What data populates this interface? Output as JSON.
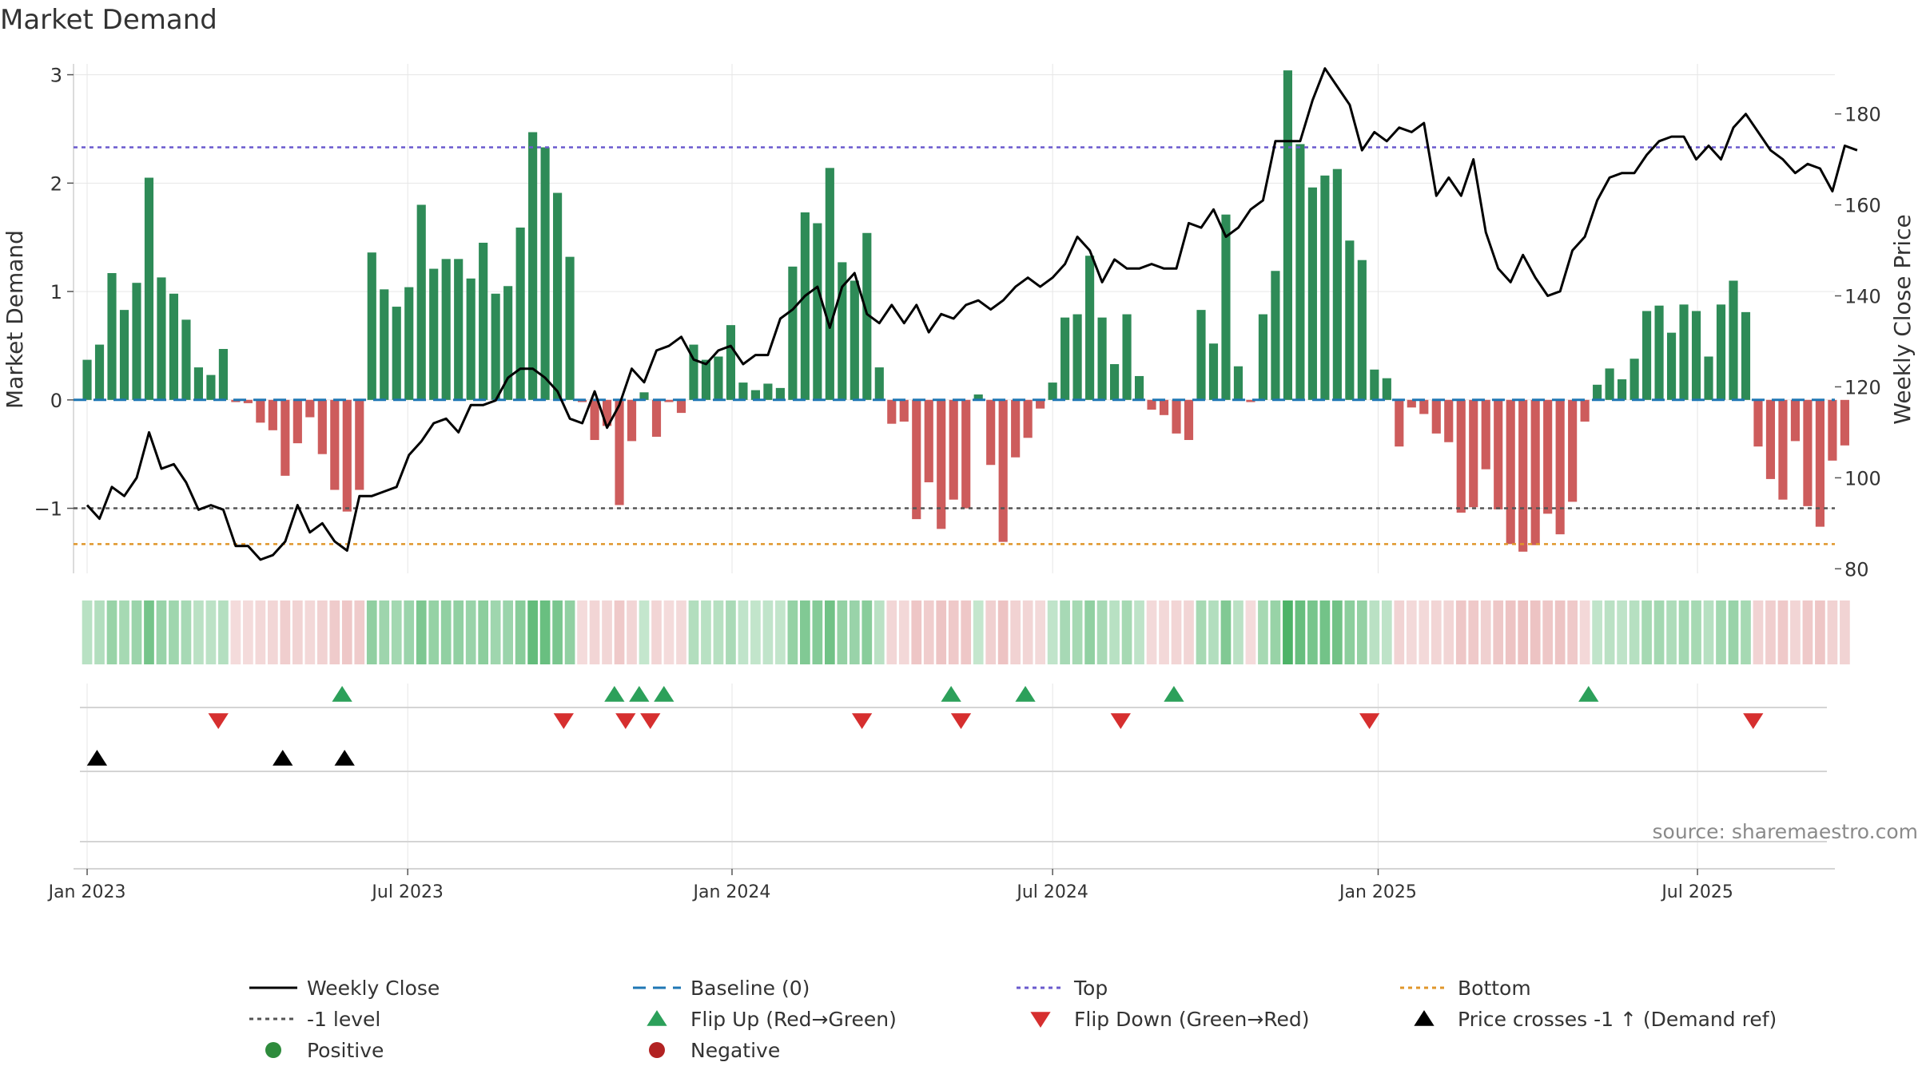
{
  "chart_data": {
    "type": "bar",
    "title": "Market Demand",
    "ylabel_left": "Market Demand",
    "ylabel_right": "Weekly Close Price",
    "source": "source: sharemaestro.com",
    "ylim_left": [
      -1.6,
      3.1
    ],
    "yticks_left": [
      {
        "v": 3,
        "label": "3"
      },
      {
        "v": 2,
        "label": "2"
      },
      {
        "v": 1,
        "label": "1"
      },
      {
        "v": 0,
        "label": "0"
      },
      {
        "v": -1,
        "label": "−1"
      }
    ],
    "ylim_right": [
      79,
      191
    ],
    "yticks_right": [
      {
        "v": 180,
        "label": "180"
      },
      {
        "v": 160,
        "label": "160"
      },
      {
        "v": 140,
        "label": "140"
      },
      {
        "v": 120,
        "label": "120"
      },
      {
        "v": 100,
        "label": "100"
      },
      {
        "v": 80,
        "label": "80"
      }
    ],
    "x_range_weeks": [
      -1.1,
      141.2
    ],
    "x_ticks": [
      {
        "week": 0,
        "label": "Jan 2023"
      },
      {
        "week": 25.9,
        "label": "Jul 2023"
      },
      {
        "week": 52.1,
        "label": "Jan 2024"
      },
      {
        "week": 78,
        "label": "Jul 2024"
      },
      {
        "week": 104.3,
        "label": "Jan 2025"
      },
      {
        "week": 130.1,
        "label": "Jul 2025"
      }
    ],
    "reference_lines": {
      "top": 2.33,
      "bottom": -1.33,
      "minus_one": -1,
      "baseline": 0
    },
    "demand": [
      0.37,
      0.51,
      1.17,
      0.83,
      1.08,
      2.05,
      1.13,
      0.98,
      0.74,
      0.3,
      0.23,
      0.47,
      -0.02,
      -0.03,
      -0.21,
      -0.28,
      -0.7,
      -0.4,
      -0.16,
      -0.5,
      -0.83,
      -1.03,
      -0.83,
      1.36,
      1.02,
      0.86,
      1.04,
      1.8,
      1.21,
      1.3,
      1.3,
      1.12,
      1.45,
      0.98,
      1.05,
      1.59,
      2.47,
      2.33,
      1.91,
      1.32,
      -0.02,
      -0.37,
      -0.24,
      -0.97,
      -0.38,
      0.07,
      -0.34,
      -0.02,
      -0.12,
      0.51,
      0.37,
      0.4,
      0.69,
      0.16,
      0.09,
      0.15,
      0.11,
      1.23,
      1.73,
      1.63,
      2.14,
      1.27,
      1.1,
      1.54,
      0.3,
      -0.22,
      -0.2,
      -1.1,
      -0.76,
      -1.19,
      -0.92,
      -1.0,
      0.05,
      -0.6,
      -1.31,
      -0.53,
      -0.35,
      -0.08,
      0.16,
      0.76,
      0.79,
      1.33,
      0.76,
      0.33,
      0.79,
      0.22,
      -0.09,
      -0.14,
      -0.31,
      -0.37,
      0.83,
      0.52,
      1.71,
      0.31,
      -0.02,
      0.79,
      1.19,
      3.04,
      2.36,
      1.96,
      2.07,
      2.13,
      1.47,
      1.29,
      0.28,
      0.2,
      -0.43,
      -0.07,
      -0.13,
      -0.31,
      -0.39,
      -1.04,
      -0.99,
      -0.64,
      -1.01,
      -1.33,
      -1.4,
      -1.34,
      -1.05,
      -1.24,
      -0.94,
      -0.2,
      0.14,
      0.29,
      0.19,
      0.38,
      0.82,
      0.87,
      0.62,
      0.88,
      0.82,
      0.4,
      0.88,
      1.1,
      0.81,
      -0.43,
      -0.73,
      -0.92,
      -0.38,
      -0.98,
      -1.17,
      -0.56,
      -0.42
    ],
    "weekly_close": [
      94,
      91,
      98,
      96,
      100,
      110,
      102,
      103,
      99,
      93,
      94,
      93,
      85,
      85,
      82,
      83,
      86,
      94,
      88,
      90,
      86,
      84,
      96,
      96,
      97,
      98,
      105,
      108,
      112,
      113,
      110,
      116,
      116,
      117,
      122,
      124,
      124,
      122,
      119,
      113,
      112,
      119,
      111,
      116,
      124,
      121,
      128,
      129,
      131,
      126,
      125,
      128,
      129,
      125,
      127,
      127,
      135,
      137,
      140,
      142,
      133,
      142,
      145,
      136,
      134,
      138,
      134,
      138,
      132,
      136,
      135,
      138,
      139,
      137,
      139,
      142,
      144,
      142,
      144,
      147,
      153,
      150,
      143,
      148,
      146,
      146,
      147,
      146,
      146,
      156,
      155,
      159,
      153,
      155,
      159,
      161,
      174,
      174,
      174,
      183,
      190,
      186,
      182,
      172,
      176,
      174,
      177,
      176,
      178,
      162,
      166,
      162,
      170,
      154,
      146,
      143,
      149,
      144,
      140,
      141,
      150,
      153,
      161,
      166,
      167,
      167,
      171,
      174,
      175,
      175,
      170,
      173,
      170,
      177,
      180,
      176,
      172,
      170,
      167,
      169,
      168,
      163,
      173,
      172
    ],
    "flip_up_weeks": [
      20.6,
      42.6,
      44.6,
      46.6,
      69.8,
      75.8,
      87.8,
      121.3
    ],
    "flip_down_weeks": [
      10.6,
      38.5,
      43.5,
      45.5,
      62.6,
      70.6,
      83.5,
      103.6,
      134.6
    ],
    "price_cross_weeks": [
      0.8,
      15.8,
      20.8
    ],
    "legend": [
      {
        "label": "Weekly Close",
        "symbol": "line",
        "color": "#000000"
      },
      {
        "label": "Baseline (0)",
        "symbol": "dash",
        "color": "#1f77b4"
      },
      {
        "label": "Top",
        "symbol": "dot",
        "color": "#6a5acd"
      },
      {
        "label": "Bottom",
        "symbol": "dot",
        "color": "#e0962a"
      },
      {
        "label": "-1 level",
        "symbol": "dot",
        "color": "#555555"
      },
      {
        "label": "Flip Up (Red→Green)",
        "symbol": "tri-up",
        "color": "#2ca05a"
      },
      {
        "label": "Flip Down (Green→Red)",
        "symbol": "tri-down",
        "color": "#d62f2f"
      },
      {
        "label": "Price crosses -1 ↑ (Demand ref)",
        "symbol": "tri-up",
        "color": "#000000"
      },
      {
        "label": "Positive",
        "symbol": "circle",
        "color": "#2e8b3c"
      },
      {
        "label": "Negative",
        "symbol": "circle",
        "color": "#b22222"
      }
    ],
    "colors": {
      "positive_bar": "#2e8b57",
      "negative_bar": "#cd5c5c",
      "price_line": "#000000",
      "grid": "#e6e6e6",
      "axis": "#cfcfcf",
      "text": "#333333"
    }
  }
}
